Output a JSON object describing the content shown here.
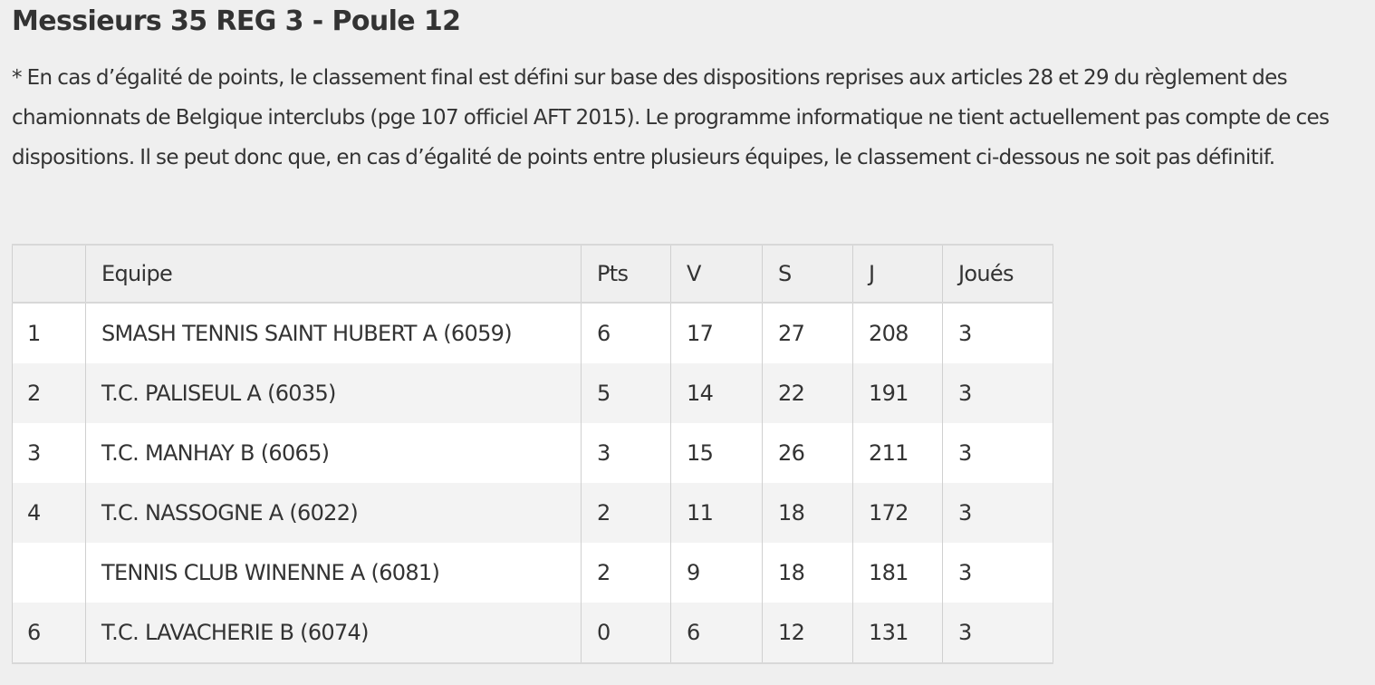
{
  "page": {
    "title": "Messieurs 35 REG 3 - Poule 12",
    "note": "* En cas d’égalité de points, le classement final est défini sur base des dispositions reprises aux articles 28 et 29 du règlement des chamionnats de Belgique interclubs (pge 107 officiel AFT 2015). Le programme informatique ne tient actuellement pas compte de ces dispositions. Il se peut donc que, en cas d’égalité de points entre plusieurs équipes, le classement ci-dessous ne soit pas définitif."
  },
  "table": {
    "headers": [
      "",
      "Equipe",
      "Pts",
      "V",
      "S",
      "J",
      "Joués"
    ],
    "rows": [
      {
        "rank": "1",
        "team": "SMASH TENNIS SAINT HUBERT A (6059)",
        "pts": "6",
        "v": "17",
        "s": "27",
        "j": "208",
        "played": "3"
      },
      {
        "rank": "2",
        "team": "T.C. PALISEUL A (6035)",
        "pts": "5",
        "v": "14",
        "s": "22",
        "j": "191",
        "played": "3"
      },
      {
        "rank": "3",
        "team": "T.C. MANHAY B (6065)",
        "pts": "3",
        "v": "15",
        "s": "26",
        "j": "211",
        "played": "3"
      },
      {
        "rank": "4",
        "team": "T.C. NASSOGNE A (6022)",
        "pts": "2",
        "v": "11",
        "s": "18",
        "j": "172",
        "played": "3"
      },
      {
        "rank": "",
        "team": "TENNIS CLUB WINENNE A (6081)",
        "pts": "2",
        "v": "9",
        "s": "18",
        "j": "181",
        "played": "3"
      },
      {
        "rank": "6",
        "team": "T.C. LAVACHERIE B (6074)",
        "pts": "0",
        "v": "6",
        "s": "12",
        "j": "131",
        "played": "3"
      }
    ]
  },
  "colors": {
    "background": "#efefef",
    "text": "#333333",
    "row_odd": "#ffffff",
    "row_even": "#f3f3f3",
    "border": "#d0d0d0"
  }
}
